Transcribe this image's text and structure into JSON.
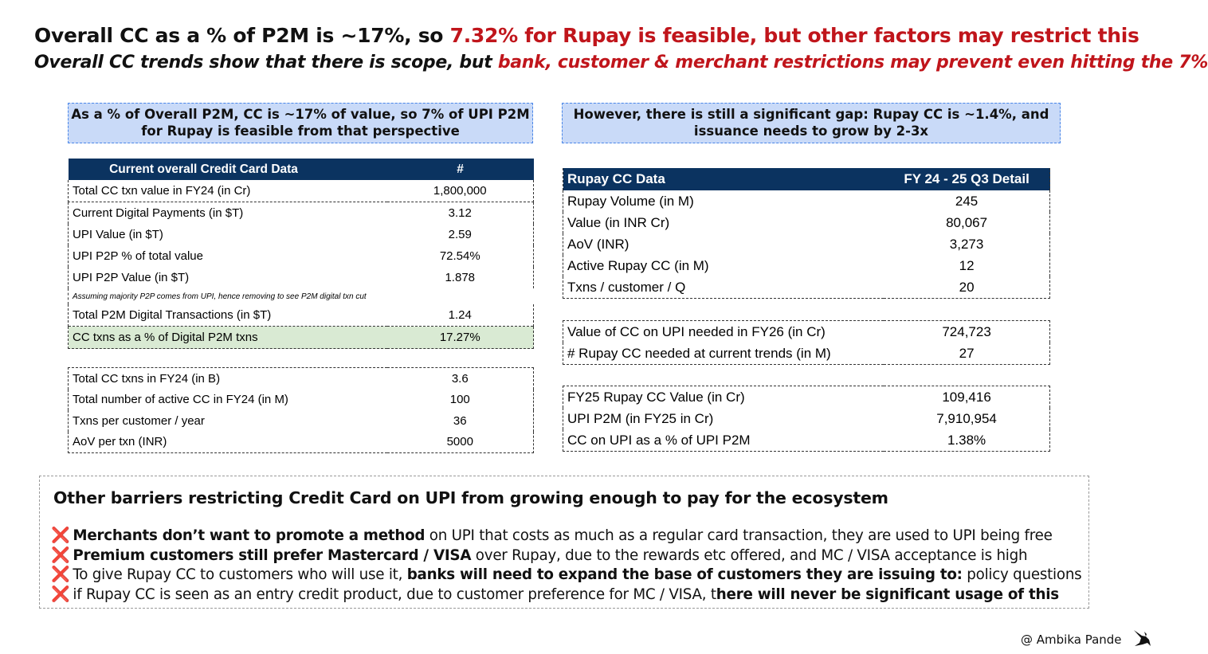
{
  "header": {
    "title_part1": "Overall CC as a % of P2M is ~17%, so ",
    "title_part2": "7.32% for Rupay is feasible, but other factors may restrict this",
    "subtitle_part1": "Overall CC trends show that there is scope, but ",
    "subtitle_part2": "bank, customer & merchant restrictions may prevent even hitting the 7%"
  },
  "callouts": {
    "left_line1": "As a % of Overall P2M, CC is ~17% of value, so 7% of UPI P2M",
    "left_line2": "for Rupay is feasible from that perspective",
    "right_line1": "However, there is still a significant gap: Rupay CC is ~1.4%, and",
    "right_line2": "issuance needs to grow by 2-3x"
  },
  "cc_table": {
    "header": [
      "Current overall Credit Card Data",
      "#"
    ],
    "rows": [
      {
        "label": "Total CC txn value in FY24 (in Cr)",
        "value": "1,800,000"
      },
      {
        "label": "Current Digital Payments (in $T)",
        "value": "3.12"
      },
      {
        "label": "UPI Value (in $T)",
        "value": "2.59"
      },
      {
        "label": "UPI P2P % of total value",
        "value": "72.54%"
      },
      {
        "label": "UPI P2P Value (in $T)",
        "value": "1.878"
      }
    ],
    "note": "Assuming majority P2P comes from UPI, hence removing to see P2M digital txn cut",
    "rows2": [
      {
        "label": "Total P2M Digital Transactions (in $T)",
        "value": "1.24"
      },
      {
        "label": "CC txns as a % of Digital P2M txns",
        "value": "17.27%"
      }
    ]
  },
  "cc_table2": {
    "rows": [
      {
        "label": "Total CC txns in FY24 (in B)",
        "value": "3.6"
      },
      {
        "label": "Total number of active CC in FY24 (in M)",
        "value": "100"
      },
      {
        "label": "Txns per customer / year",
        "value": "36"
      },
      {
        "label": "AoV per txn (INR)",
        "value": "5000"
      }
    ]
  },
  "rupay_table": {
    "header": [
      "Rupay CC Data",
      "FY 24 - 25 Q3 Detail"
    ],
    "rows": [
      {
        "label": "Rupay Volume (in M)",
        "value": "245"
      },
      {
        "label": "Value (in INR Cr)",
        "value": "80,067"
      },
      {
        "label": "AoV (INR)",
        "value": "3,273"
      },
      {
        "label": "Active Rupay CC (in M)",
        "value": "12"
      },
      {
        "label": "Txns / customer / Q",
        "value": "20"
      }
    ]
  },
  "need_table": {
    "rows": [
      {
        "label": "Value of CC on UPI needed in FY26 (in Cr)",
        "value": "724,723"
      },
      {
        "label": "# Rupay CC needed at current trends (in M)",
        "value": "27"
      }
    ]
  },
  "fy25_table": {
    "rows": [
      {
        "label": "FY25 Rupay CC Value (in Cr)",
        "value": "109,416"
      },
      {
        "label": "UPI P2M (in FY25 in Cr)",
        "value": "7,910,954"
      },
      {
        "label": "CC on UPI as a % of UPI P2M",
        "value": "1.38%"
      }
    ]
  },
  "barriers": {
    "title": "Other barriers restricting Credit Card on UPI from growing enough to pay for the ecosystem",
    "icon": "cross-mark-icon",
    "mark": "❌",
    "items": [
      {
        "bold": "Merchants don’t want to promote a method",
        "rest": " on UPI that costs as much as a regular card transaction, they are used to UPI being free"
      },
      {
        "bold": "Premium customers still prefer Mastercard / VISA",
        "rest": " over Rupay, due to the rewards etc offered, and MC / VISA acceptance is high"
      },
      {
        "pre": "To give Rupay CC to customers who will use it, ",
        "bold": "banks will need to expand the base of customers they are issuing to:",
        "rest": " policy questions"
      },
      {
        "pre": "if Rupay CC is seen as an entry credit product, due to customer preference for MC / VISA, t",
        "bold": "here will never be significant usage of this"
      }
    ]
  },
  "footer": {
    "credit": "@ Ambika Pande"
  },
  "colors": {
    "accent_red": "#c0151b",
    "header_navy": "#0b3360",
    "callout_blue": "#c9daf8",
    "highlight_green": "#d9ead3"
  }
}
